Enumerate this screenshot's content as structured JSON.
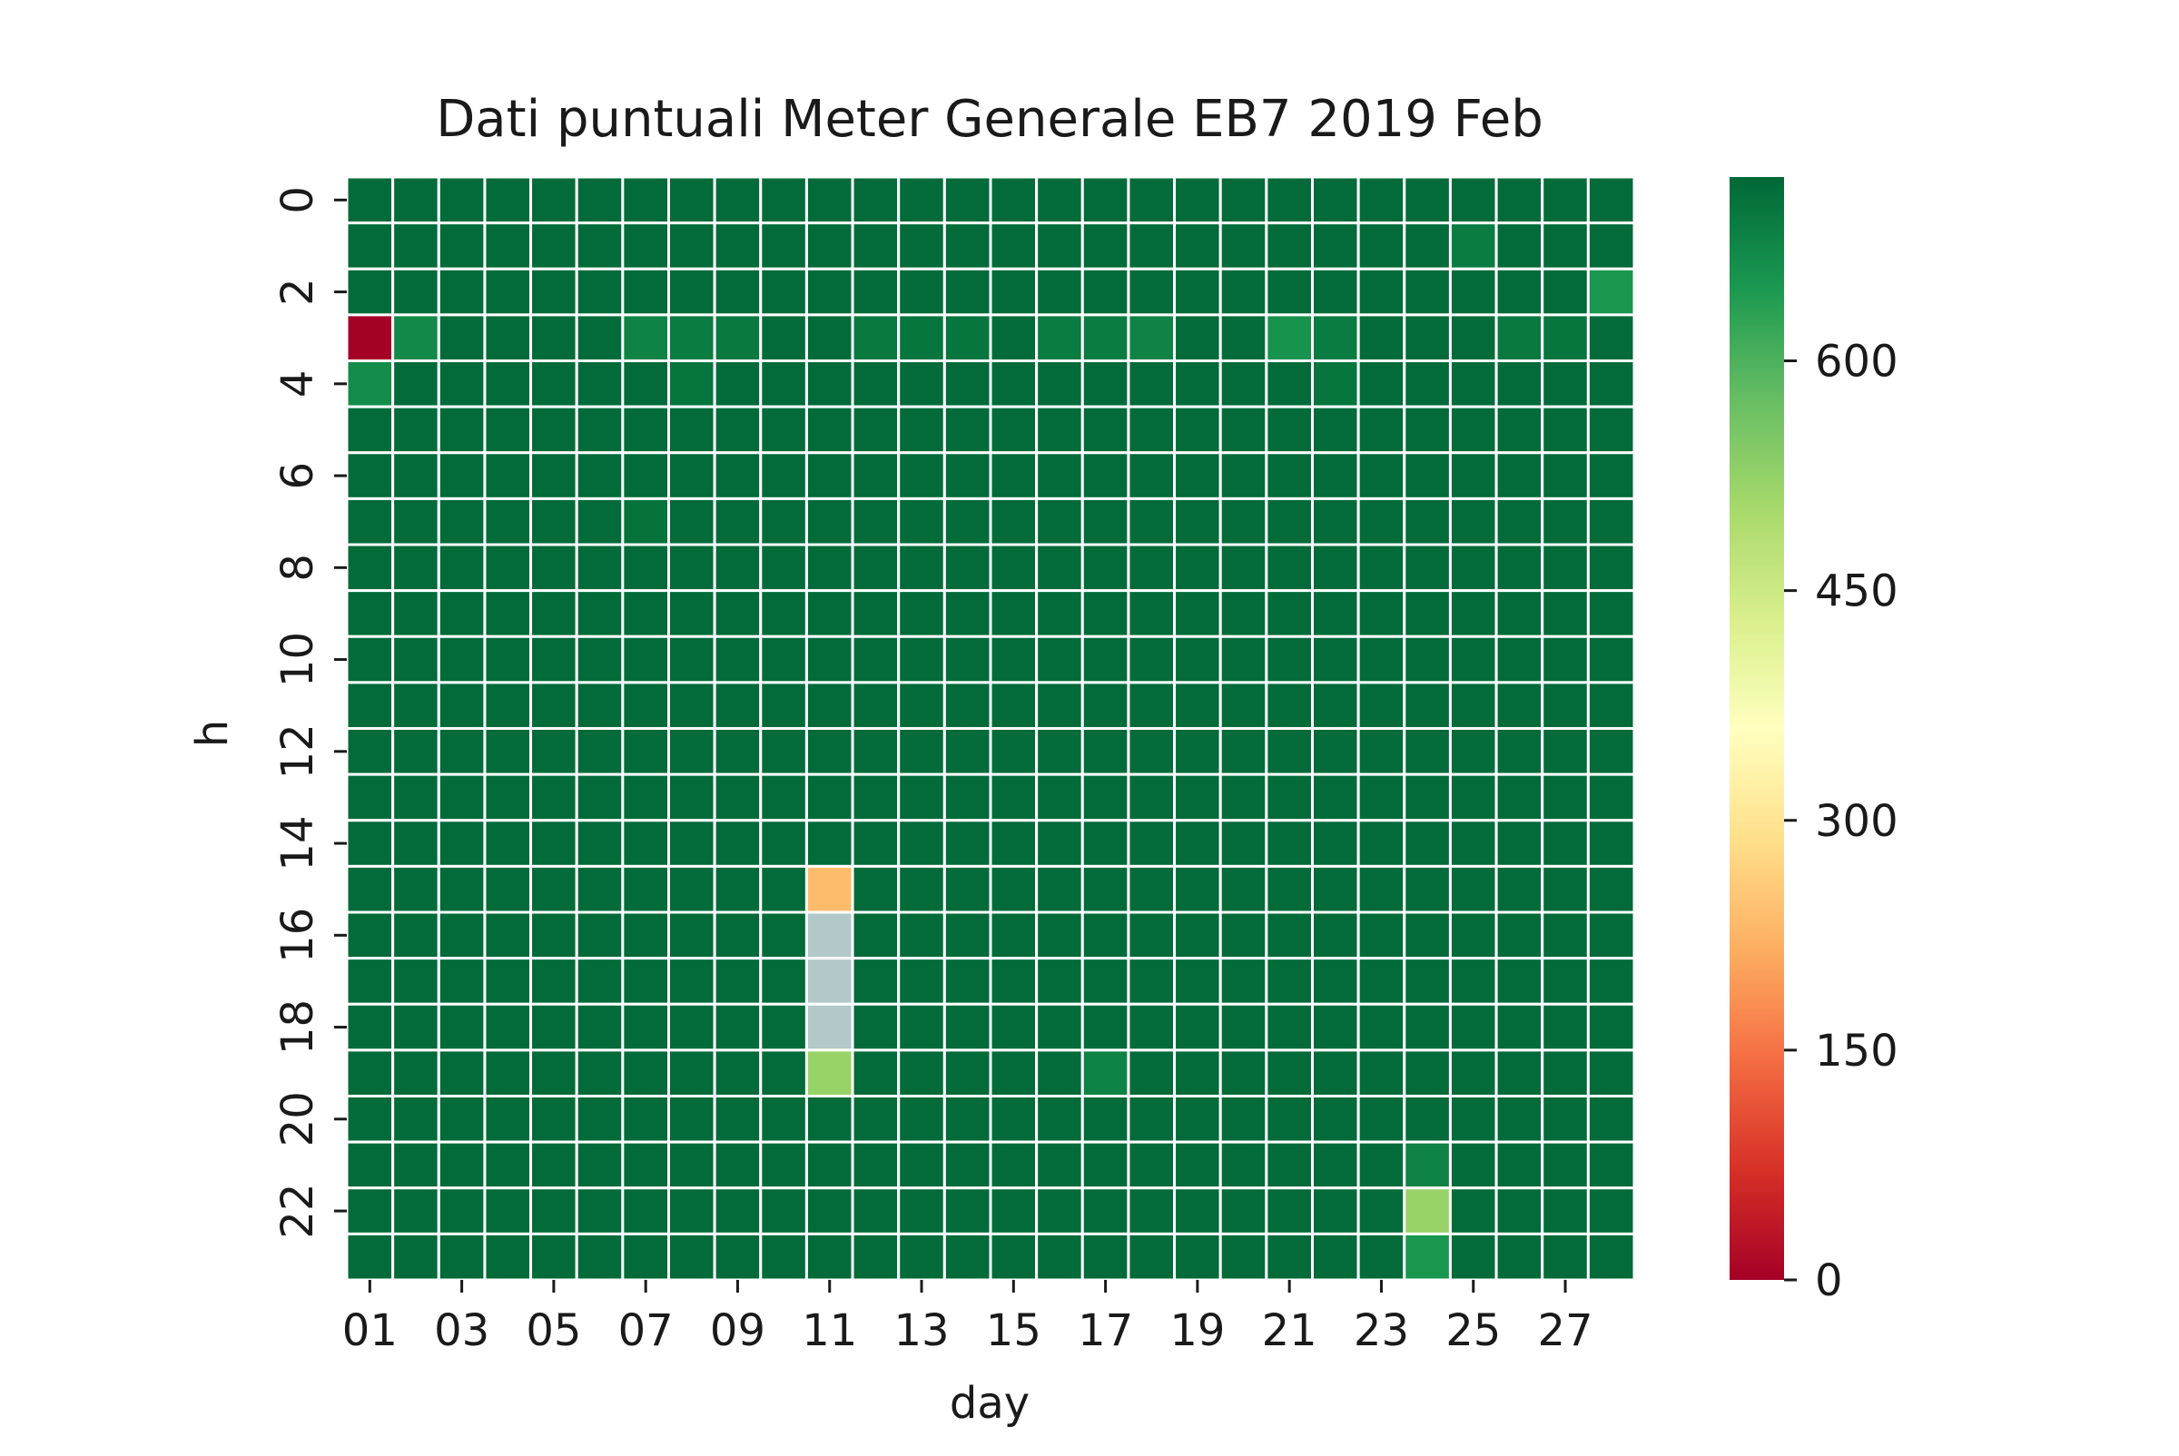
{
  "chart_data": {
    "type": "heatmap",
    "title": "Dati puntuali Meter Generale EB7 2019 Feb",
    "xlabel": "day",
    "ylabel": "h",
    "x": [
      "01",
      "02",
      "03",
      "04",
      "05",
      "06",
      "07",
      "08",
      "09",
      "10",
      "11",
      "12",
      "13",
      "14",
      "15",
      "16",
      "17",
      "18",
      "19",
      "20",
      "21",
      "22",
      "23",
      "24",
      "25",
      "26",
      "27",
      "28"
    ],
    "y": [
      0,
      1,
      2,
      3,
      4,
      5,
      6,
      7,
      8,
      9,
      10,
      11,
      12,
      13,
      14,
      15,
      16,
      17,
      18,
      19,
      20,
      21,
      22,
      23
    ],
    "x_tick_labels": [
      "01",
      "03",
      "05",
      "07",
      "09",
      "11",
      "13",
      "15",
      "17",
      "19",
      "21",
      "23",
      "25",
      "27"
    ],
    "y_tick_labels": [
      "0",
      "2",
      "4",
      "6",
      "8",
      "10",
      "12",
      "14",
      "16",
      "18",
      "20",
      "22"
    ],
    "colormap": "RdYlGn",
    "vmin": 0,
    "vmax": 720,
    "missing_color": "#b3c8c8",
    "grid_color": "#ffffff",
    "colorbar": {
      "ticks": [
        0,
        150,
        300,
        450,
        600
      ],
      "tick_labels": [
        "0",
        "150",
        "300",
        "450",
        "600"
      ]
    },
    "values": [
      [
        715,
        715,
        715,
        715,
        715,
        715,
        715,
        715,
        715,
        715,
        715,
        715,
        715,
        715,
        715,
        715,
        715,
        715,
        715,
        715,
        715,
        715,
        715,
        715,
        715,
        715,
        715,
        715
      ],
      [
        715,
        715,
        715,
        715,
        715,
        715,
        715,
        715,
        715,
        715,
        715,
        715,
        715,
        715,
        715,
        715,
        715,
        715,
        715,
        715,
        715,
        715,
        715,
        715,
        690,
        715,
        715,
        715
      ],
      [
        715,
        715,
        715,
        715,
        715,
        715,
        715,
        715,
        715,
        715,
        715,
        715,
        715,
        715,
        715,
        715,
        715,
        715,
        715,
        715,
        715,
        715,
        715,
        715,
        715,
        715,
        715,
        650
      ],
      [
        0,
        670,
        715,
        715,
        715,
        715,
        680,
        690,
        695,
        715,
        715,
        695,
        700,
        700,
        715,
        690,
        690,
        680,
        715,
        715,
        655,
        690,
        715,
        715,
        715,
        695,
        700,
        715
      ],
      [
        665,
        715,
        715,
        715,
        715,
        715,
        715,
        700,
        715,
        715,
        715,
        715,
        715,
        715,
        715,
        715,
        715,
        715,
        715,
        715,
        715,
        700,
        715,
        715,
        715,
        715,
        715,
        715
      ],
      [
        715,
        715,
        715,
        715,
        715,
        715,
        715,
        715,
        715,
        715,
        715,
        715,
        715,
        715,
        715,
        715,
        715,
        715,
        715,
        715,
        715,
        715,
        715,
        715,
        715,
        715,
        715,
        715
      ],
      [
        715,
        715,
        715,
        715,
        715,
        715,
        715,
        715,
        715,
        715,
        715,
        715,
        715,
        715,
        715,
        715,
        715,
        715,
        715,
        715,
        715,
        715,
        715,
        715,
        715,
        715,
        715,
        715
      ],
      [
        715,
        715,
        715,
        715,
        715,
        715,
        705,
        715,
        715,
        715,
        715,
        715,
        715,
        715,
        715,
        715,
        715,
        715,
        715,
        715,
        715,
        715,
        715,
        715,
        715,
        715,
        715,
        715
      ],
      [
        715,
        715,
        715,
        715,
        715,
        715,
        715,
        715,
        715,
        715,
        715,
        715,
        715,
        715,
        715,
        715,
        715,
        715,
        715,
        715,
        715,
        715,
        715,
        715,
        715,
        715,
        715,
        715
      ],
      [
        715,
        715,
        715,
        715,
        715,
        715,
        715,
        715,
        715,
        715,
        715,
        715,
        715,
        715,
        715,
        715,
        715,
        715,
        715,
        715,
        715,
        715,
        715,
        715,
        715,
        715,
        715,
        715
      ],
      [
        715,
        715,
        715,
        715,
        715,
        715,
        715,
        715,
        715,
        715,
        715,
        715,
        715,
        715,
        715,
        715,
        715,
        715,
        715,
        715,
        715,
        715,
        715,
        715,
        715,
        715,
        715,
        715
      ],
      [
        715,
        715,
        715,
        715,
        715,
        715,
        715,
        715,
        715,
        715,
        715,
        715,
        715,
        715,
        715,
        715,
        715,
        715,
        715,
        715,
        715,
        715,
        715,
        715,
        715,
        715,
        715,
        715
      ],
      [
        715,
        715,
        715,
        715,
        715,
        715,
        715,
        715,
        715,
        715,
        715,
        715,
        715,
        715,
        715,
        715,
        715,
        715,
        715,
        715,
        715,
        715,
        715,
        715,
        715,
        715,
        715,
        715
      ],
      [
        715,
        715,
        715,
        715,
        715,
        715,
        715,
        715,
        715,
        715,
        715,
        715,
        715,
        715,
        715,
        715,
        715,
        715,
        715,
        715,
        715,
        715,
        715,
        715,
        715,
        715,
        715,
        715
      ],
      [
        715,
        715,
        715,
        715,
        715,
        715,
        715,
        715,
        715,
        715,
        715,
        715,
        715,
        715,
        715,
        715,
        715,
        715,
        715,
        715,
        715,
        715,
        715,
        715,
        715,
        715,
        715,
        715
      ],
      [
        715,
        715,
        715,
        715,
        715,
        715,
        715,
        715,
        715,
        715,
        235,
        715,
        715,
        715,
        715,
        715,
        715,
        715,
        715,
        715,
        715,
        715,
        715,
        715,
        715,
        715,
        715,
        715
      ],
      [
        715,
        715,
        715,
        715,
        715,
        715,
        715,
        715,
        715,
        715,
        null,
        715,
        715,
        715,
        715,
        715,
        715,
        715,
        715,
        715,
        715,
        715,
        715,
        715,
        715,
        715,
        715,
        715
      ],
      [
        715,
        715,
        715,
        715,
        715,
        715,
        715,
        715,
        715,
        715,
        null,
        715,
        715,
        715,
        715,
        715,
        715,
        715,
        715,
        715,
        715,
        715,
        715,
        715,
        715,
        715,
        715,
        715
      ],
      [
        715,
        715,
        715,
        715,
        715,
        715,
        715,
        715,
        715,
        715,
        null,
        715,
        715,
        715,
        715,
        715,
        715,
        715,
        715,
        715,
        715,
        715,
        715,
        715,
        715,
        715,
        715,
        715
      ],
      [
        715,
        715,
        715,
        715,
        715,
        715,
        715,
        715,
        715,
        715,
        520,
        715,
        715,
        715,
        715,
        715,
        680,
        715,
        715,
        715,
        715,
        715,
        715,
        715,
        715,
        715,
        715,
        715
      ],
      [
        715,
        715,
        715,
        715,
        715,
        715,
        715,
        715,
        715,
        715,
        715,
        715,
        715,
        715,
        715,
        715,
        715,
        715,
        715,
        715,
        715,
        715,
        715,
        715,
        715,
        715,
        715,
        715
      ],
      [
        715,
        715,
        715,
        715,
        715,
        715,
        715,
        715,
        715,
        715,
        715,
        715,
        715,
        715,
        715,
        715,
        715,
        715,
        715,
        715,
        715,
        715,
        715,
        680,
        715,
        715,
        715,
        715
      ],
      [
        715,
        715,
        715,
        715,
        715,
        715,
        715,
        715,
        715,
        715,
        715,
        715,
        715,
        715,
        715,
        715,
        715,
        715,
        715,
        715,
        715,
        715,
        715,
        520,
        715,
        715,
        715,
        715
      ],
      [
        715,
        715,
        715,
        715,
        715,
        715,
        715,
        715,
        715,
        715,
        715,
        715,
        715,
        715,
        715,
        715,
        715,
        715,
        715,
        715,
        715,
        715,
        715,
        650,
        715,
        715,
        715,
        715
      ]
    ]
  }
}
